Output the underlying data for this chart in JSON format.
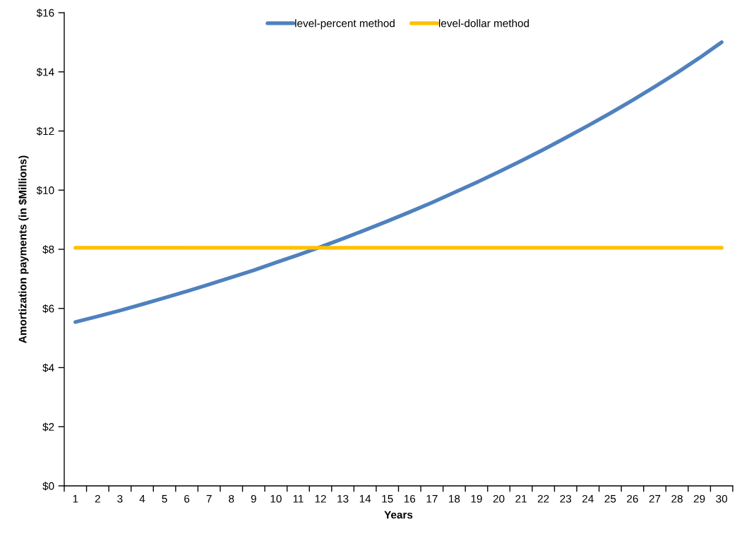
{
  "chart_data": {
    "type": "line",
    "xlabel": "Years",
    "ylabel": "Amortization payments (in $Millions)",
    "categories": [
      "1",
      "2",
      "3",
      "4",
      "5",
      "6",
      "7",
      "8",
      "9",
      "10",
      "11",
      "12",
      "13",
      "14",
      "15",
      "16",
      "17",
      "18",
      "19",
      "20",
      "21",
      "22",
      "23",
      "24",
      "25",
      "26",
      "27",
      "28",
      "29",
      "30"
    ],
    "series": [
      {
        "name": "level-percent method",
        "color": "#4f81bd",
        "values": [
          5.54,
          5.73,
          5.93,
          6.14,
          6.36,
          6.58,
          6.81,
          7.05,
          7.29,
          7.55,
          7.81,
          8.08,
          8.36,
          8.65,
          8.95,
          9.26,
          9.58,
          9.92,
          10.26,
          10.62,
          10.99,
          11.37,
          11.77,
          12.18,
          12.6,
          13.04,
          13.5,
          13.97,
          14.47,
          15.0
        ]
      },
      {
        "name": "level-dollar method",
        "color": "#ffc000",
        "values": [
          8.05,
          8.05,
          8.05,
          8.05,
          8.05,
          8.05,
          8.05,
          8.05,
          8.05,
          8.05,
          8.05,
          8.05,
          8.05,
          8.05,
          8.05,
          8.05,
          8.05,
          8.05,
          8.05,
          8.05,
          8.05,
          8.05,
          8.05,
          8.05,
          8.05,
          8.05,
          8.05,
          8.05,
          8.05,
          8.05
        ]
      }
    ],
    "ylim": [
      0,
      16
    ],
    "yticks": [
      {
        "value": 0,
        "label": "$0"
      },
      {
        "value": 2,
        "label": "$2"
      },
      {
        "value": 4,
        "label": "$4"
      },
      {
        "value": 6,
        "label": "$6"
      },
      {
        "value": 8,
        "label": "$8"
      },
      {
        "value": 10,
        "label": "$10"
      },
      {
        "value": 12,
        "label": "$12"
      },
      {
        "value": 14,
        "label": "$14"
      },
      {
        "value": 16,
        "label": "$16"
      }
    ],
    "legend": "top"
  }
}
